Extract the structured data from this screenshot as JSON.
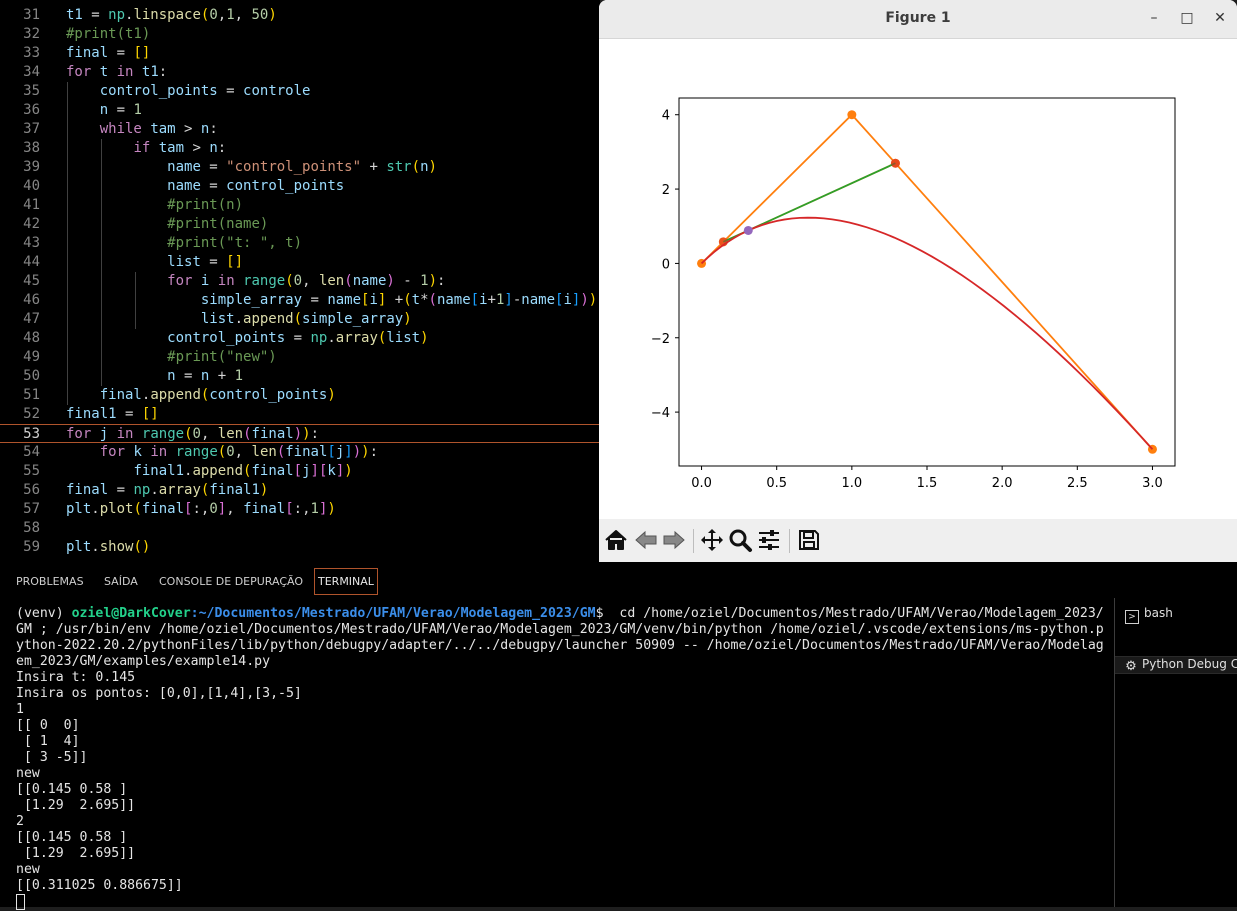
{
  "editor": {
    "lines": [
      {
        "n": "31",
        "html": "<span class='var'>t1</span> = <span class='cls'>np</span>.<span class='fn'>linspace</span><span class='br'>(</span><span class='num'>0</span>,<span class='num'>1</span>, <span class='num'>50</span><span class='br'>)</span>"
      },
      {
        "n": "32",
        "html": "<span class='cm'>#print(t1)</span>"
      },
      {
        "n": "33",
        "html": "<span class='var'>final</span> = <span class='br'>[]</span>"
      },
      {
        "n": "34",
        "html": "<span class='kw'>for</span> <span class='var'>t</span> <span class='kw'>in</span> <span class='var'>t1</span>:"
      },
      {
        "n": "35",
        "html": "    <span class='var'>control_points</span> = <span class='var'>controle</span>"
      },
      {
        "n": "36",
        "html": "    <span class='var'>n</span> = <span class='num'>1</span>"
      },
      {
        "n": "37",
        "html": "    <span class='kw'>while</span> <span class='var'>tam</span> &gt; <span class='var'>n</span>:"
      },
      {
        "n": "38",
        "html": "        <span class='kw'>if</span> <span class='var'>tam</span> &gt; <span class='var'>n</span>:"
      },
      {
        "n": "39",
        "html": "            <span class='var'>name</span> = <span class='str'>\"control_points\"</span> + <span class='cls'>str</span><span class='br'>(</span><span class='var'>n</span><span class='br'>)</span>"
      },
      {
        "n": "40",
        "html": "            <span class='var'>name</span> = <span class='var'>control_points</span>"
      },
      {
        "n": "41",
        "html": "            <span class='cm'>#print(n)</span>"
      },
      {
        "n": "42",
        "html": "            <span class='cm'>#print(name)</span>"
      },
      {
        "n": "43",
        "html": "            <span class='cm'>#print(\"t: \", t)</span>"
      },
      {
        "n": "44",
        "html": "            <span class='var'>list</span> = <span class='br'>[]</span>"
      },
      {
        "n": "45",
        "html": "            <span class='kw'>for</span> <span class='var'>i</span> <span class='kw'>in</span> <span class='cls'>range</span><span class='br'>(</span><span class='num'>0</span>, <span class='fn'>len</span><span class='br2'>(</span><span class='var'>name</span><span class='br2'>)</span> - <span class='num'>1</span><span class='br'>)</span>:"
      },
      {
        "n": "46",
        "html": "                <span class='var'>simple_array</span> = <span class='var'>name</span><span class='br'>[</span><span class='var'>i</span><span class='br'>]</span> +<span class='br'>(</span><span class='var'>t</span>*<span class='br2'>(</span><span class='var'>name</span><span class='br3'>[</span><span class='var'>i</span>+<span class='num'>1</span><span class='br3'>]</span>-<span class='var'>name</span><span class='br3'>[</span><span class='var'>i</span><span class='br3'>]</span><span class='br2'>)</span><span class='br'>)</span>"
      },
      {
        "n": "47",
        "html": "                <span class='var'>list</span>.<span class='fn'>append</span><span class='br'>(</span><span class='var'>simple_array</span><span class='br'>)</span>"
      },
      {
        "n": "48",
        "html": "            <span class='var'>control_points</span> = <span class='cls'>np</span>.<span class='fn'>array</span><span class='br'>(</span><span class='var'>list</span><span class='br'>)</span>"
      },
      {
        "n": "49",
        "html": "            <span class='cm'>#print(\"new\")</span>"
      },
      {
        "n": "50",
        "html": "            <span class='var'>n</span> = <span class='var'>n</span> + <span class='num'>1</span>"
      },
      {
        "n": "51",
        "html": "    <span class='var'>final</span>.<span class='fn'>append</span><span class='br'>(</span><span class='var'>control_points</span><span class='br'>)</span>"
      },
      {
        "n": "52",
        "html": "<span class='var'>final1</span> = <span class='br'>[]</span>"
      },
      {
        "n": "53",
        "html": "<span class='kw'>for</span> <span class='var'>j</span> <span class='kw'>in</span> <span class='cls'>range</span><span class='br'>(</span><span class='num'>0</span>, <span class='fn'>len</span><span class='br2'>(</span><span class='var'>final</span><span class='br2'>)</span><span class='br'>)</span>:"
      },
      {
        "n": "54",
        "html": "    <span class='kw'>for</span> <span class='var'>k</span> <span class='kw'>in</span> <span class='cls'>range</span><span class='br'>(</span><span class='num'>0</span>, <span class='fn'>len</span><span class='br2'>(</span><span class='var'>final</span><span class='br3'>[</span><span class='var'>j</span><span class='br3'>]</span><span class='br2'>)</span><span class='br'>)</span>:"
      },
      {
        "n": "55",
        "html": "        <span class='var'>final1</span>.<span class='fn'>append</span><span class='br'>(</span><span class='var'>final</span><span class='br2'>[</span><span class='var'>j</span><span class='br2'>]</span><span class='br2'>[</span><span class='var'>k</span><span class='br2'>]</span><span class='br'>)</span>"
      },
      {
        "n": "56",
        "html": "<span class='var'>final</span> = <span class='cls'>np</span>.<span class='fn'>array</span><span class='br'>(</span><span class='var'>final1</span><span class='br'>)</span>"
      },
      {
        "n": "57",
        "html": "<span class='var'>plt</span>.<span class='fn'>plot</span><span class='br'>(</span><span class='var'>final</span><span class='br2'>[</span>:,<span class='num'>0</span><span class='br2'>]</span>, <span class='var'>final</span><span class='br2'>[</span>:,<span class='num'>1</span><span class='br2'>]</span><span class='br'>)</span>"
      },
      {
        "n": "58",
        "html": ""
      },
      {
        "n": "59",
        "html": "<span class='var'>plt</span>.<span class='fn'>show</span><span class='br'>()</span>"
      }
    ],
    "current_line": "53"
  },
  "figure": {
    "title": "Figure 1",
    "minimize": "–",
    "maximize": "□",
    "close": "✕",
    "axes": {
      "xlim": [
        -0.15,
        3.15
      ],
      "ylim": [
        -5.45,
        4.45
      ],
      "xticks": [
        "0.0",
        "0.5",
        "1.0",
        "1.5",
        "2.0",
        "2.5",
        "3.0"
      ],
      "xtick_values": [
        0,
        0.5,
        1.0,
        1.5,
        2.0,
        2.5,
        3.0
      ],
      "yticks": [
        "−4",
        "−2",
        "0",
        "2",
        "4"
      ],
      "ytick_values": [
        -4,
        -2,
        0,
        2,
        4
      ]
    },
    "colors": {
      "orange": "#ff7f0e",
      "green": "#2ca02c",
      "red": "#d62728",
      "purple": "#9467bd"
    },
    "toolbar": [
      {
        "name": "home-icon"
      },
      {
        "name": "back-icon"
      },
      {
        "name": "forward-icon"
      },
      {
        "name": "pan-icon"
      },
      {
        "name": "zoom-icon"
      },
      {
        "name": "configure-subplots-icon"
      },
      {
        "name": "save-icon"
      }
    ]
  },
  "chart_data": {
    "type": "line",
    "series": [
      {
        "color": "orange",
        "x": [
          0,
          1,
          3
        ],
        "y": [
          0,
          4,
          -5
        ],
        "markers": true
      },
      {
        "color": "orange",
        "x": [
          0.145,
          1.29
        ],
        "y": [
          0.58,
          2.695
        ],
        "markers": true
      },
      {
        "color": "green",
        "x": [
          0.145,
          1.29
        ],
        "y": [
          0.58,
          2.695
        ],
        "markers": false
      },
      {
        "color": "red",
        "bezier": [
          [
            0,
            0
          ],
          [
            1,
            4
          ],
          [
            3,
            -5
          ]
        ],
        "samples": 50
      },
      {
        "color": "purple",
        "x": [
          0.311025
        ],
        "y": [
          0.886675
        ],
        "markers": true
      }
    ],
    "xlim": [
      -0.15,
      3.15
    ],
    "ylim": [
      -5.45,
      4.45
    ],
    "grid": false
  },
  "panel": {
    "tabs": [
      "PROBLEMAS",
      "SAÍDA",
      "CONSOLE DE DEPURAÇÃO",
      "TERMINAL"
    ],
    "active_tab": "TERMINAL",
    "terminal": {
      "prompt_env": "(venv) ",
      "prompt_user": "oziel@DarkCover",
      "prompt_path": ":~/Documentos/Mestrado/UFAM/Verao/Modelagem_2023/GM",
      "prompt_symbol": "$",
      "command": "  cd /home/oziel/Documentos/Mestrado/UFAM/Verao/Modelagem_2023/GM ; /usr/bin/env /home/oziel/Documentos/Mestrado/UFAM/Verao/Modelagem_2023/GM/venv/bin/python /home/oziel/.vscode/extensions/ms-python.python-2022.20.2/pythonFiles/lib/python/debugpy/adapter/../../debugpy/launcher 50909 -- /home/oziel/Documentos/Mestrado/UFAM/Verao/Modelagem_2023/GM/examples/example14.py",
      "output": "Insira t: 0.145\nInsira os pontos: [0,0],[1,4],[3,-5]\n1\n[[ 0  0]\n [ 1  4]\n [ 3 -5]]\nnew\n[[0.145 0.58 ]\n [1.29  2.695]]\n2\n[[0.145 0.58 ]\n [1.29  2.695]]\nnew\n[[0.311025 0.886675]]\n"
    },
    "terminal_list": [
      {
        "label": "bash",
        "icon": "terminal-icon"
      },
      {
        "label": "Python Debug C",
        "icon": "debug-icon"
      }
    ]
  }
}
